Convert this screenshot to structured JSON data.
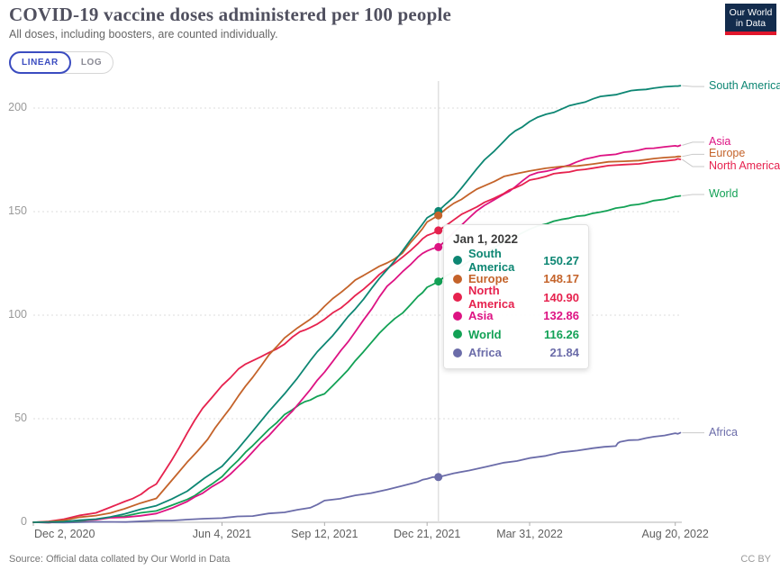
{
  "header": {
    "title": "COVID-19 vaccine doses administered per 100 people",
    "subtitle": "All doses, including boosters, are counted individually.",
    "logo": {
      "line1": "Our World",
      "line2": "in Data",
      "bg": "#132c4d",
      "bar": "#e0162b"
    }
  },
  "toolbar": {
    "linear_label": "LINEAR",
    "log_label": "LOG",
    "active_color": "#3b4cc0"
  },
  "chart_data": {
    "type": "line",
    "title": "COVID-19 vaccine doses administered per 100 people",
    "xlabel": "",
    "ylabel": "",
    "x_axis": {
      "ticks": [
        {
          "label": "Dec 2, 2020",
          "day": 0,
          "align": "start"
        },
        {
          "label": "Jun 4, 2021",
          "day": 184
        },
        {
          "label": "Sep 12, 2021",
          "day": 284
        },
        {
          "label": "Dec 21, 2021",
          "day": 384
        },
        {
          "label": "Mar 31, 2022",
          "day": 484
        },
        {
          "label": "Aug 20, 2022",
          "day": 626
        }
      ]
    },
    "y_axis": {
      "ticks": [
        0,
        50,
        100,
        150,
        200
      ],
      "min": 0,
      "max": 200,
      "grid": "dashed"
    },
    "series": [
      {
        "key": "africa",
        "name": "Africa",
        "color": "#6b6ca9",
        "points": [
          [
            0,
            0
          ],
          [
            61,
            0.2
          ],
          [
            120,
            0.8
          ],
          [
            150,
            1.3
          ],
          [
            184,
            2
          ],
          [
            214,
            3
          ],
          [
            245,
            4.8
          ],
          [
            270,
            7
          ],
          [
            284,
            10.5
          ],
          [
            314,
            13
          ],
          [
            345,
            15.8
          ],
          [
            375,
            19.5
          ],
          [
            384,
            21
          ],
          [
            395,
            21.8
          ],
          [
            425,
            25
          ],
          [
            459,
            28.8
          ],
          [
            484,
            31
          ],
          [
            515,
            33.8
          ],
          [
            546,
            35.8
          ],
          [
            568,
            36.8
          ],
          [
            572,
            38.8
          ],
          [
            590,
            39.8
          ],
          [
            605,
            41.3
          ],
          [
            626,
            43
          ],
          [
            631,
            43.2
          ]
        ]
      },
      {
        "key": "world",
        "name": "World",
        "color": "#12a155",
        "points": [
          [
            0,
            0
          ],
          [
            30,
            0.4
          ],
          [
            61,
            1.3
          ],
          [
            89,
            2.9
          ],
          [
            120,
            5.5
          ],
          [
            150,
            11
          ],
          [
            165,
            15.5
          ],
          [
            184,
            22
          ],
          [
            200,
            30
          ],
          [
            214,
            37
          ],
          [
            230,
            45
          ],
          [
            245,
            52
          ],
          [
            260,
            57
          ],
          [
            270,
            59
          ],
          [
            284,
            62
          ],
          [
            300,
            70
          ],
          [
            314,
            78
          ],
          [
            330,
            87
          ],
          [
            345,
            95
          ],
          [
            360,
            101
          ],
          [
            375,
            109
          ],
          [
            384,
            113.5
          ],
          [
            395,
            116.3
          ],
          [
            410,
            121
          ],
          [
            425,
            126
          ],
          [
            440,
            130.5
          ],
          [
            459,
            135.5
          ],
          [
            484,
            141.5
          ],
          [
            500,
            144
          ],
          [
            515,
            146.2
          ],
          [
            530,
            147.8
          ],
          [
            546,
            149.2
          ],
          [
            560,
            150.5
          ],
          [
            576,
            152.2
          ],
          [
            590,
            153.5
          ],
          [
            605,
            155.3
          ],
          [
            626,
            157.3
          ],
          [
            631,
            157.6
          ]
        ]
      },
      {
        "key": "asia",
        "name": "Asia",
        "color": "#dd1383",
        "points": [
          [
            0,
            0
          ],
          [
            30,
            0.4
          ],
          [
            61,
            1.2
          ],
          [
            89,
            2.4
          ],
          [
            120,
            4.2
          ],
          [
            150,
            10
          ],
          [
            165,
            14
          ],
          [
            184,
            20
          ],
          [
            200,
            27
          ],
          [
            214,
            34
          ],
          [
            230,
            42
          ],
          [
            245,
            50
          ],
          [
            260,
            58
          ],
          [
            270,
            64
          ],
          [
            284,
            72.5
          ],
          [
            300,
            83
          ],
          [
            314,
            92
          ],
          [
            330,
            103
          ],
          [
            345,
            114
          ],
          [
            360,
            121
          ],
          [
            375,
            128
          ],
          [
            384,
            131
          ],
          [
            395,
            132.9
          ],
          [
            410,
            140
          ],
          [
            425,
            147
          ],
          [
            440,
            153
          ],
          [
            459,
            158.5
          ],
          [
            470,
            162
          ],
          [
            484,
            167.5
          ],
          [
            500,
            169.5
          ],
          [
            515,
            171.5
          ],
          [
            530,
            174
          ],
          [
            546,
            176.2
          ],
          [
            560,
            177.3
          ],
          [
            576,
            178.7
          ],
          [
            590,
            179.6
          ],
          [
            605,
            180.6
          ],
          [
            626,
            181.8
          ],
          [
            631,
            182
          ]
        ]
      },
      {
        "key": "north_america",
        "name": "North America",
        "color": "#e6224e",
        "points": [
          [
            0,
            0
          ],
          [
            30,
            1.5
          ],
          [
            61,
            4.5
          ],
          [
            89,
            10
          ],
          [
            105,
            13.5
          ],
          [
            120,
            18.5
          ],
          [
            135,
            30
          ],
          [
            150,
            43
          ],
          [
            165,
            55
          ],
          [
            184,
            66
          ],
          [
            200,
            74
          ],
          [
            214,
            78
          ],
          [
            230,
            82
          ],
          [
            245,
            86
          ],
          [
            260,
            92
          ],
          [
            270,
            94
          ],
          [
            284,
            98
          ],
          [
            300,
            103.5
          ],
          [
            314,
            109.5
          ],
          [
            330,
            116
          ],
          [
            345,
            122.5
          ],
          [
            360,
            128
          ],
          [
            375,
            134.5
          ],
          [
            384,
            138.5
          ],
          [
            395,
            140.9
          ],
          [
            410,
            146
          ],
          [
            425,
            150.5
          ],
          [
            440,
            154.5
          ],
          [
            459,
            158.8
          ],
          [
            470,
            161.5
          ],
          [
            484,
            165.2
          ],
          [
            500,
            167
          ],
          [
            515,
            168.8
          ],
          [
            530,
            170
          ],
          [
            546,
            171
          ],
          [
            576,
            172.7
          ],
          [
            605,
            174
          ],
          [
            626,
            175
          ],
          [
            631,
            175.2
          ]
        ]
      },
      {
        "key": "europe",
        "name": "Europe",
        "color": "#c4632a",
        "points": [
          [
            0,
            0
          ],
          [
            30,
            1
          ],
          [
            61,
            3.2
          ],
          [
            89,
            6.5
          ],
          [
            120,
            11.5
          ],
          [
            150,
            29
          ],
          [
            170,
            40
          ],
          [
            184,
            50
          ],
          [
            200,
            61
          ],
          [
            214,
            70
          ],
          [
            230,
            81
          ],
          [
            245,
            89
          ],
          [
            270,
            98
          ],
          [
            284,
            104.3
          ],
          [
            300,
            111
          ],
          [
            314,
            117
          ],
          [
            330,
            121.5
          ],
          [
            345,
            125.2
          ],
          [
            360,
            130
          ],
          [
            375,
            139
          ],
          [
            384,
            145
          ],
          [
            395,
            148.2
          ],
          [
            410,
            154
          ],
          [
            425,
            158.5
          ],
          [
            440,
            162.5
          ],
          [
            459,
            167
          ],
          [
            484,
            169.6
          ],
          [
            515,
            171.8
          ],
          [
            546,
            173
          ],
          [
            576,
            174.3
          ],
          [
            605,
            175.6
          ],
          [
            626,
            176.4
          ],
          [
            631,
            176.6
          ]
        ]
      },
      {
        "key": "south_america",
        "name": "South America",
        "color": "#0d8673",
        "points": [
          [
            0,
            0
          ],
          [
            30,
            0.3
          ],
          [
            61,
            1.5
          ],
          [
            89,
            4
          ],
          [
            120,
            8
          ],
          [
            150,
            15
          ],
          [
            184,
            27
          ],
          [
            214,
            44
          ],
          [
            245,
            62
          ],
          [
            270,
            78
          ],
          [
            284,
            86
          ],
          [
            300,
            95
          ],
          [
            314,
            103
          ],
          [
            330,
            113
          ],
          [
            345,
            122
          ],
          [
            360,
            131
          ],
          [
            375,
            141
          ],
          [
            384,
            147
          ],
          [
            395,
            150.3
          ],
          [
            410,
            157
          ],
          [
            425,
            166
          ],
          [
            440,
            175
          ],
          [
            459,
            184
          ],
          [
            470,
            189
          ],
          [
            484,
            193.5
          ],
          [
            500,
            197
          ],
          [
            515,
            199.5
          ],
          [
            530,
            202
          ],
          [
            546,
            204.5
          ],
          [
            560,
            206
          ],
          [
            576,
            207.5
          ],
          [
            590,
            208.8
          ],
          [
            605,
            209.6
          ],
          [
            626,
            210.6
          ],
          [
            631,
            210.8
          ]
        ]
      }
    ],
    "hover": {
      "date": "Jan 1, 2022",
      "day": 395,
      "rows": [
        {
          "series": "south_america",
          "name": "South America",
          "value": 150.27,
          "display": "150.27"
        },
        {
          "series": "europe",
          "name": "Europe",
          "value": 148.17,
          "display": "148.17"
        },
        {
          "series": "north_america",
          "name": "North America",
          "value": 140.9,
          "display": "140.90"
        },
        {
          "series": "asia",
          "name": "Asia",
          "value": 132.86,
          "display": "132.86"
        },
        {
          "series": "world",
          "name": "World",
          "value": 116.26,
          "display": "116.26"
        },
        {
          "series": "africa",
          "name": "Africa",
          "value": 21.84,
          "display": "21.84"
        }
      ]
    }
  },
  "footer": {
    "source": "Source: Official data collated by Our World in Data",
    "license": "CC BY"
  }
}
